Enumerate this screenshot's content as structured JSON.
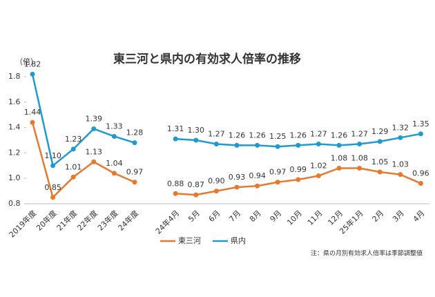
{
  "chart_data": {
    "type": "line",
    "title": "東三河と県内の有効求人倍率の推移",
    "y_unit_label": "（倍）",
    "note": "注：県の月別有効求人倍率は季節調整値",
    "categories": [
      "2019年度",
      "20年度",
      "21年度",
      "22年度",
      "23年度",
      "24年度",
      null,
      "24年4月",
      "5月",
      "6月",
      "7月",
      "8月",
      "9月",
      "10月",
      "11月",
      "12月",
      "25年1月",
      "2月",
      "3月",
      "4月"
    ],
    "series": [
      {
        "name": "東三河",
        "color": "#e8792c",
        "values": [
          1.44,
          0.85,
          1.01,
          1.13,
          1.04,
          0.97,
          null,
          0.88,
          0.87,
          0.9,
          0.93,
          0.94,
          0.97,
          0.99,
          1.02,
          1.08,
          1.08,
          1.05,
          1.03,
          0.96
        ],
        "value_labels": [
          "1.44",
          "0.85",
          "1.01",
          "1.13",
          "1.04",
          "0.97",
          null,
          "0.88",
          "0.87",
          "0.90",
          "0.93",
          "0.94",
          "0.97",
          "0.99",
          "1.02",
          "1.08",
          "1.08",
          "1.05",
          "1.03",
          "0.96"
        ]
      },
      {
        "name": "県内",
        "color": "#1e9ad2",
        "values": [
          1.82,
          1.1,
          1.23,
          1.39,
          1.33,
          1.28,
          null,
          1.31,
          1.3,
          1.27,
          1.26,
          1.26,
          1.25,
          1.26,
          1.27,
          1.26,
          1.27,
          1.29,
          1.32,
          1.35
        ],
        "value_labels": [
          "1.82",
          "1.10",
          "1.23",
          "1.39",
          "1.33",
          "1.28",
          null,
          "1.31",
          "1.30",
          "1.27",
          "1.26",
          "1.26",
          "1.25",
          "1.26",
          "1.27",
          "1.26",
          "1.27",
          "1.29",
          "1.32",
          "1.35"
        ]
      }
    ],
    "ylim": [
      0.8,
      1.8
    ],
    "yticks": [
      0.8,
      {
        "value": 1,
        "label": "1.0"
      },
      1.2,
      1.4,
      1.6,
      1.8
    ],
    "grid": false,
    "legend": "bottom"
  }
}
